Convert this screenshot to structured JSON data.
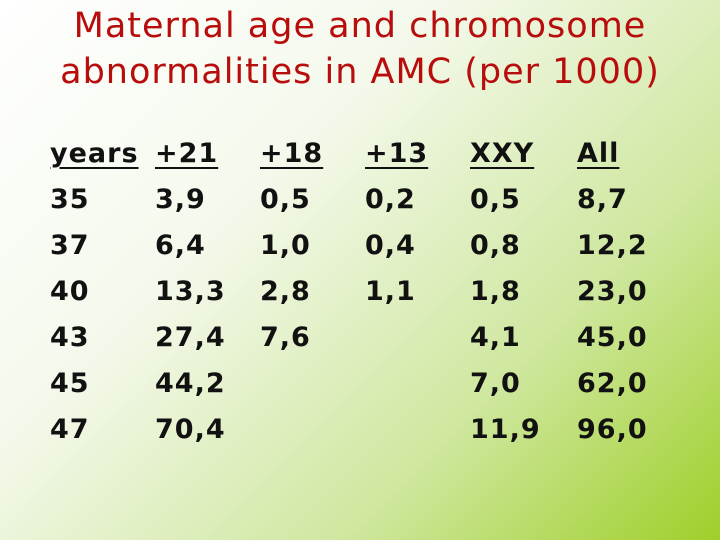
{
  "title": {
    "lines": [
      "Maternal age and chromosome",
      "abnormalities in AMC (per 1000)"
    ]
  },
  "table": {
    "header": [
      "years",
      "+21",
      "+18",
      "+13",
      "XXY",
      "All"
    ],
    "rows": [
      [
        "35",
        "3,9",
        "0,5",
        "0,2",
        "0,5",
        "8,7"
      ],
      [
        "37",
        "6,4",
        "1,0",
        "0,4",
        "0,8",
        "12,2"
      ],
      [
        "40",
        "13,3",
        "2,8",
        "1,1",
        "1,8",
        "23,0"
      ],
      [
        "43",
        "27,4",
        "7,6",
        null,
        "4,1",
        "45,0"
      ],
      [
        "45",
        "44,2",
        null,
        null,
        "7,0",
        "62,0"
      ],
      [
        "47",
        "70,4",
        null,
        null,
        "11,9",
        "96,0"
      ]
    ]
  }
}
